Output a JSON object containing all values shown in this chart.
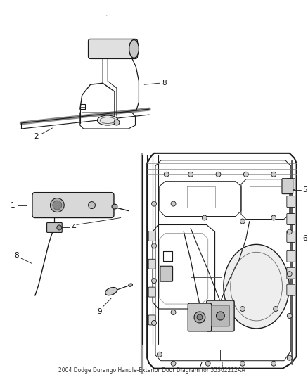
{
  "title": "2004 Dodge Durango Handle-Exterior Door Diagram for 55362212AA",
  "bg_color": "#ffffff",
  "line_color": "#1a1a1a",
  "label_color": "#111111",
  "label_fontsize": 7.5,
  "title_fontsize": 5.5,
  "fig_width": 4.38,
  "fig_height": 5.33,
  "dpi": 100
}
